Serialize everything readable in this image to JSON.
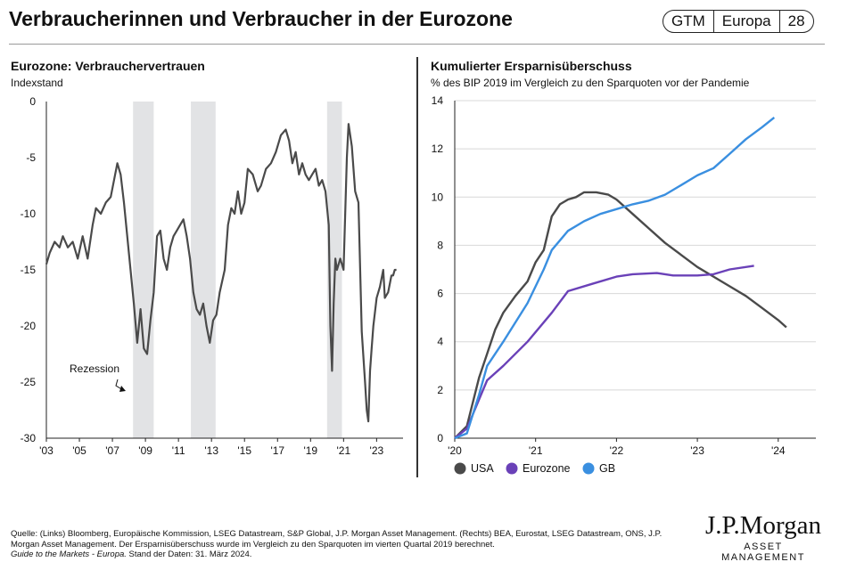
{
  "header": {
    "title": "Verbraucherinnen und Verbraucher in der Eurozone",
    "badge": [
      "GTM",
      "Europa",
      "28"
    ]
  },
  "left": {
    "title": "Eurozone: Verbrauchervertrauen",
    "subtitle": "Indexstand"
  },
  "right": {
    "title": "Kumulierter Ersparnisüberschuss",
    "subtitle": "% des BIP 2019 im Vergleich zu den Sparquoten vor der Pandemie"
  },
  "colors": {
    "line_dark": "#4a4a4a",
    "eurozone": "#6a41b8",
    "gb": "#3a8fe0",
    "recession": "#e2e3e5"
  },
  "chart_data": [
    {
      "type": "line",
      "title": "Eurozone: Verbrauchervertrauen",
      "ylabel": "Indexstand",
      "ylim": [
        -30,
        0
      ],
      "xlim": [
        2003,
        2024.6
      ],
      "y_ticks": [
        0,
        -5,
        -10,
        -15,
        -20,
        -25,
        -30
      ],
      "x_ticks": [
        {
          "v": 2003,
          "label": "'03"
        },
        {
          "v": 2005,
          "label": "'05"
        },
        {
          "v": 2007,
          "label": "'07"
        },
        {
          "v": 2009,
          "label": "'09"
        },
        {
          "v": 2011,
          "label": "'11"
        },
        {
          "v": 2013,
          "label": "'13"
        },
        {
          "v": 2015,
          "label": "'15"
        },
        {
          "v": 2017,
          "label": "'17"
        },
        {
          "v": 2019,
          "label": "'19"
        },
        {
          "v": 2021,
          "label": "'21"
        },
        {
          "v": 2023,
          "label": "'23"
        }
      ],
      "recessions": [
        [
          2008.25,
          2009.5
        ],
        [
          2011.75,
          2013.25
        ],
        [
          2020.0,
          2020.9
        ]
      ],
      "annotation": "Rezession",
      "series": [
        {
          "name": "Verbrauchervertrauen",
          "x": [
            2003.0,
            2003.2,
            2003.5,
            2003.8,
            2004.0,
            2004.3,
            2004.6,
            2004.9,
            2005.2,
            2005.5,
            2005.8,
            2006.0,
            2006.3,
            2006.6,
            2006.9,
            2007.1,
            2007.3,
            2007.5,
            2007.7,
            2007.9,
            2008.1,
            2008.3,
            2008.5,
            2008.7,
            2008.9,
            2009.1,
            2009.3,
            2009.5,
            2009.7,
            2009.9,
            2010.1,
            2010.3,
            2010.5,
            2010.7,
            2010.9,
            2011.1,
            2011.3,
            2011.5,
            2011.7,
            2011.9,
            2012.1,
            2012.3,
            2012.5,
            2012.7,
            2012.9,
            2013.1,
            2013.3,
            2013.5,
            2013.8,
            2014.0,
            2014.2,
            2014.4,
            2014.6,
            2014.8,
            2015.0,
            2015.2,
            2015.5,
            2015.8,
            2016.0,
            2016.3,
            2016.6,
            2016.9,
            2017.2,
            2017.5,
            2017.7,
            2017.9,
            2018.1,
            2018.3,
            2018.5,
            2018.7,
            2018.9,
            2019.1,
            2019.3,
            2019.5,
            2019.7,
            2019.9,
            2020.1,
            2020.2,
            2020.3,
            2020.4,
            2020.5,
            2020.6,
            2020.8,
            2021.0,
            2021.2,
            2021.3,
            2021.5,
            2021.7,
            2021.9,
            2022.1,
            2022.3,
            2022.4,
            2022.5,
            2022.6,
            2022.7,
            2022.8,
            2023.0,
            2023.2,
            2023.4,
            2023.5,
            2023.7,
            2023.9,
            2024.0,
            2024.1,
            2024.2
          ],
          "values": [
            -14.5,
            -13.5,
            -12.5,
            -13.0,
            -12.0,
            -13.0,
            -12.5,
            -14.0,
            -12.0,
            -14.0,
            -11.0,
            -9.5,
            -10.0,
            -9.0,
            -8.5,
            -7.0,
            -5.5,
            -6.5,
            -9.0,
            -12.0,
            -15.0,
            -18.0,
            -21.5,
            -18.5,
            -22.0,
            -22.5,
            -19.5,
            -17.0,
            -12.0,
            -11.5,
            -14.0,
            -15.0,
            -13.0,
            -12.0,
            -11.5,
            -11.0,
            -10.5,
            -12.0,
            -14.0,
            -17.0,
            -18.5,
            -19.0,
            -18.0,
            -20.0,
            -21.5,
            -19.5,
            -19.0,
            -17.0,
            -15.0,
            -11.0,
            -9.5,
            -10.0,
            -8.0,
            -10.0,
            -9.0,
            -6.0,
            -6.5,
            -8.0,
            -7.5,
            -6.0,
            -5.5,
            -4.5,
            -3.0,
            -2.5,
            -3.5,
            -5.5,
            -4.5,
            -6.5,
            -5.5,
            -6.5,
            -7.0,
            -6.5,
            -6.0,
            -7.5,
            -7.0,
            -8.0,
            -11.0,
            -20.0,
            -24.0,
            -18.0,
            -14.0,
            -15.0,
            -14.0,
            -15.0,
            -5.0,
            -2.0,
            -4.0,
            -8.0,
            -9.0,
            -20.5,
            -25.0,
            -27.5,
            -28.5,
            -24.0,
            -22.0,
            -20.0,
            -17.5,
            -16.5,
            -15.0,
            -17.5,
            -17.0,
            -15.5,
            -15.5,
            -15.0,
            -15.0
          ]
        }
      ]
    },
    {
      "type": "line",
      "title": "Kumulierter Ersparnisüberschuss",
      "ylabel": "% des BIP 2019 im Vergleich zu den Sparquoten vor der Pandemie",
      "ylim": [
        0,
        14
      ],
      "xlim": [
        2020.0,
        2024.3
      ],
      "y_ticks": [
        0,
        2,
        4,
        6,
        8,
        10,
        12,
        14
      ],
      "x_ticks": [
        {
          "v": 2020,
          "label": "'20"
        },
        {
          "v": 2021,
          "label": "'21"
        },
        {
          "v": 2022,
          "label": "'22"
        },
        {
          "v": 2023,
          "label": "'23"
        },
        {
          "v": 2024,
          "label": "'24"
        }
      ],
      "legend": [
        "USA",
        "Eurozone",
        "GB"
      ],
      "series": [
        {
          "name": "USA",
          "x": [
            2020.0,
            2020.15,
            2020.3,
            2020.4,
            2020.5,
            2020.6,
            2020.75,
            2020.9,
            2021.0,
            2021.1,
            2021.2,
            2021.3,
            2021.4,
            2021.5,
            2021.6,
            2021.75,
            2021.9,
            2022.0,
            2022.2,
            2022.4,
            2022.6,
            2022.8,
            2023.0,
            2023.2,
            2023.4,
            2023.6,
            2023.8,
            2024.0,
            2024.1
          ],
          "values": [
            0,
            0.5,
            2.5,
            3.5,
            4.5,
            5.2,
            5.9,
            6.5,
            7.3,
            7.8,
            9.2,
            9.7,
            9.9,
            10.0,
            10.2,
            10.2,
            10.1,
            9.9,
            9.3,
            8.7,
            8.1,
            7.6,
            7.1,
            6.7,
            6.3,
            5.9,
            5.4,
            4.9,
            4.6
          ]
        },
        {
          "name": "Eurozone",
          "x": [
            2020.0,
            2020.15,
            2020.3,
            2020.4,
            2020.6,
            2020.9,
            2021.2,
            2021.4,
            2021.7,
            2022.0,
            2022.2,
            2022.5,
            2022.7,
            2023.0,
            2023.2,
            2023.4,
            2023.7
          ],
          "values": [
            0,
            0.4,
            1.6,
            2.4,
            3.0,
            4.0,
            5.2,
            6.1,
            6.4,
            6.7,
            6.8,
            6.85,
            6.75,
            6.75,
            6.8,
            7.0,
            7.15
          ]
        },
        {
          "name": "GB",
          "x": [
            2020.0,
            2020.15,
            2020.3,
            2020.4,
            2020.6,
            2020.9,
            2021.1,
            2021.2,
            2021.4,
            2021.6,
            2021.8,
            2022.0,
            2022.2,
            2022.4,
            2022.6,
            2022.8,
            2023.0,
            2023.2,
            2023.4,
            2023.6,
            2023.8,
            2023.95
          ],
          "values": [
            0,
            0.2,
            1.8,
            3.0,
            4.0,
            5.6,
            7.0,
            7.8,
            8.6,
            9.0,
            9.3,
            9.5,
            9.7,
            9.85,
            10.1,
            10.5,
            10.9,
            11.2,
            11.8,
            12.4,
            12.9,
            13.3
          ]
        }
      ]
    }
  ],
  "footer": {
    "source": "Quelle: (Links) Bloomberg, Europäische Kommission, LSEG Datastream, S&P Global, J.P. Morgan Asset Management. (Rechts) BEA, Eurostat, LSEG Datastream, ONS, J.P. Morgan Asset Management. Der Ersparnisüberschuss wurde im Vergleich zu den Sparquoten im vierten Quartal 2019 berechnet.",
    "note": "Guide to the Markets - Europa.",
    "date": "Stand der Daten: 31. März 2024."
  },
  "logo": {
    "main": "J.P.Morgan",
    "sub": "ASSET MANAGEMENT"
  }
}
